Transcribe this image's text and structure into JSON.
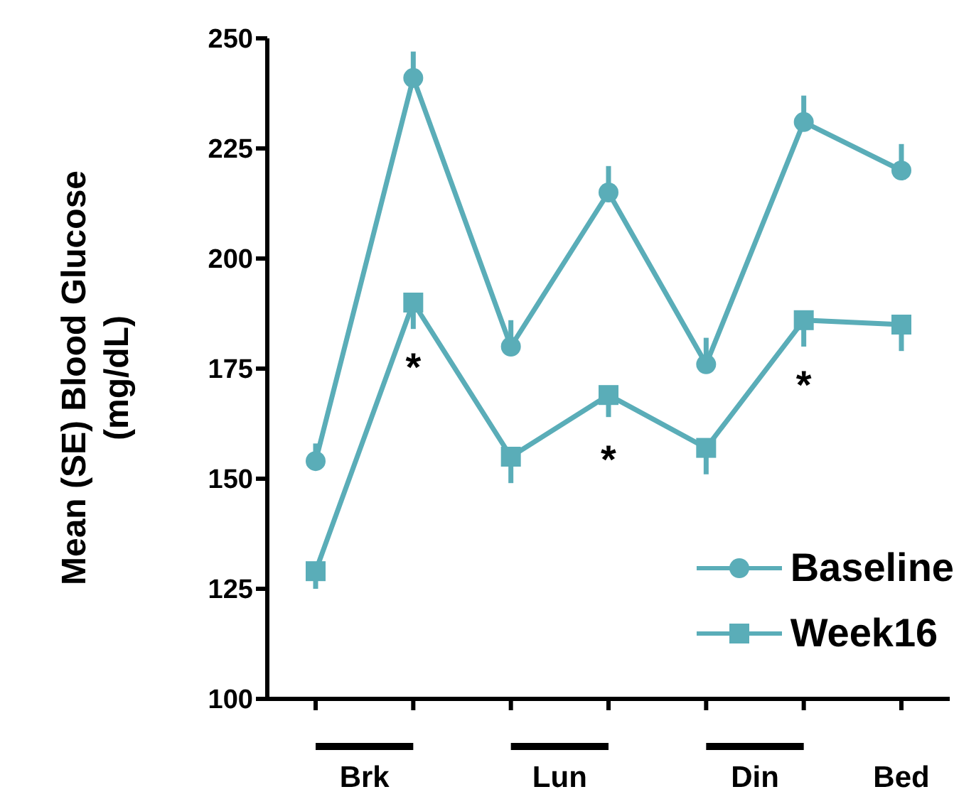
{
  "chart_data": {
    "type": "line",
    "ylabel": "Mean (SE) Blood Glucose (mg/dL)",
    "categories": [
      null,
      null,
      null,
      null,
      null,
      null,
      null
    ],
    "series": [
      {
        "name": "Baseline",
        "color": "#5aadb8",
        "marker": "circle",
        "values": [
          154,
          241,
          180,
          215,
          176,
          231,
          220
        ],
        "errors": [
          [
            154,
            158
          ],
          [
            241,
            247
          ],
          [
            180,
            186
          ],
          [
            215,
            221
          ],
          [
            176,
            182
          ],
          [
            231,
            237
          ],
          [
            220,
            226
          ]
        ]
      },
      {
        "name": "Week16",
        "color": "#5aadb8",
        "marker": "square",
        "values": [
          129,
          190,
          155,
          169,
          157,
          186,
          185
        ],
        "errors": [
          [
            125,
            129
          ],
          [
            184,
            190
          ],
          [
            149,
            155
          ],
          [
            164,
            169
          ],
          [
            151,
            157
          ],
          [
            180,
            186
          ],
          [
            179,
            185
          ]
        ]
      }
    ],
    "ylim": [
      100,
      250
    ],
    "yticks": [
      100,
      125,
      150,
      175,
      200,
      225,
      250
    ],
    "grid": false,
    "legend": "bottom right",
    "annotations": [
      "Brk",
      "Lun",
      "Din",
      "Bed",
      "*",
      "*",
      "*"
    ]
  }
}
